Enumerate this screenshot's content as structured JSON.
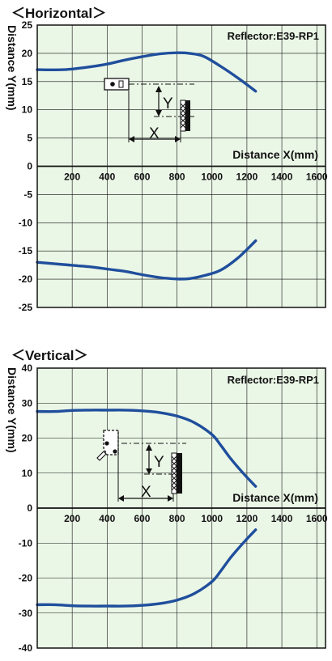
{
  "colors": {
    "plot_bg": "#eaf6e6",
    "grid": "#111111",
    "curve": "#1f4e9c",
    "frame": "#111111"
  },
  "chart_data": [
    {
      "type": "line",
      "title": "＜Horizontal＞",
      "annotation": "Reflector:E39-RP1",
      "xlabel": "Distance X(mm)",
      "ylabel": "Distance Y(mm)",
      "xlim": [
        0,
        1650
      ],
      "ylim": [
        -25,
        25
      ],
      "grid": true,
      "x_ticks": [
        200,
        400,
        600,
        800,
        1000,
        1200,
        1400,
        1600
      ],
      "x_tick_labels": [
        "200",
        "400",
        "600",
        "800",
        "1000",
        "1200",
        "1400",
        "1600"
      ],
      "y_ticks": [
        25,
        20,
        15,
        10,
        5,
        0,
        -5,
        -10,
        -15,
        -20,
        -25
      ],
      "y_tick_labels": [
        "25",
        "20",
        "15",
        "10",
        "5",
        "0",
        "-5",
        "-10",
        "-15",
        "-20",
        "-25"
      ],
      "series": [
        {
          "x": [
            0,
            150,
            300,
            400,
            500,
            600,
            700,
            800,
            870,
            950,
            1050,
            1150,
            1250
          ],
          "y": [
            17.1,
            17.1,
            17.6,
            18.1,
            18.8,
            19.4,
            19.9,
            20.1,
            20.0,
            19.5,
            17.7,
            15.6,
            13.3
          ]
        },
        {
          "x": [
            0,
            150,
            300,
            400,
            500,
            600,
            700,
            800,
            870,
            950,
            1050,
            1150,
            1250
          ],
          "y": [
            -17.0,
            -17.4,
            -17.8,
            -18.2,
            -18.6,
            -19.2,
            -19.7,
            -19.95,
            -19.9,
            -19.4,
            -18.4,
            -16.2,
            -13.2
          ]
        }
      ],
      "diagram": {
        "dim_x": "X",
        "dim_y": "Y"
      }
    },
    {
      "type": "line",
      "title": "＜Vertical＞",
      "annotation": "Reflector:E39-RP1",
      "xlabel": "Distance X(mm)",
      "ylabel": "Distance Y(mm)",
      "xlim": [
        0,
        1650
      ],
      "ylim": [
        -40,
        40
      ],
      "grid": true,
      "x_ticks": [
        200,
        400,
        600,
        800,
        1000,
        1200,
        1400,
        1600
      ],
      "x_tick_labels": [
        "200",
        "400",
        "600",
        "800",
        "1000",
        "1200",
        "1400",
        "1600"
      ],
      "y_ticks": [
        40,
        30,
        20,
        10,
        0,
        -10,
        -20,
        -30,
        -40
      ],
      "y_tick_labels": [
        "40",
        "30",
        "20",
        "10",
        "0",
        "-10",
        "-20",
        "-30",
        "-40"
      ],
      "series": [
        {
          "x": [
            0,
            100,
            200,
            300,
            400,
            500,
            600,
            700,
            800,
            900,
            1000,
            1050,
            1100,
            1150,
            1200,
            1250
          ],
          "y": [
            27.6,
            27.6,
            27.9,
            28.0,
            28.0,
            28.0,
            27.8,
            27.3,
            26.3,
            24.4,
            21.0,
            18.0,
            14.6,
            11.6,
            8.8,
            6.2
          ]
        },
        {
          "x": [
            0,
            100,
            200,
            300,
            400,
            500,
            600,
            700,
            800,
            900,
            1000,
            1050,
            1100,
            1150,
            1200,
            1250
          ],
          "y": [
            -27.6,
            -27.6,
            -27.9,
            -28.0,
            -28.0,
            -28.0,
            -27.8,
            -27.3,
            -26.3,
            -24.4,
            -21.0,
            -18.0,
            -14.6,
            -11.6,
            -8.8,
            -6.2
          ]
        }
      ],
      "diagram": {
        "dim_x": "X",
        "dim_y": "Y"
      }
    }
  ]
}
